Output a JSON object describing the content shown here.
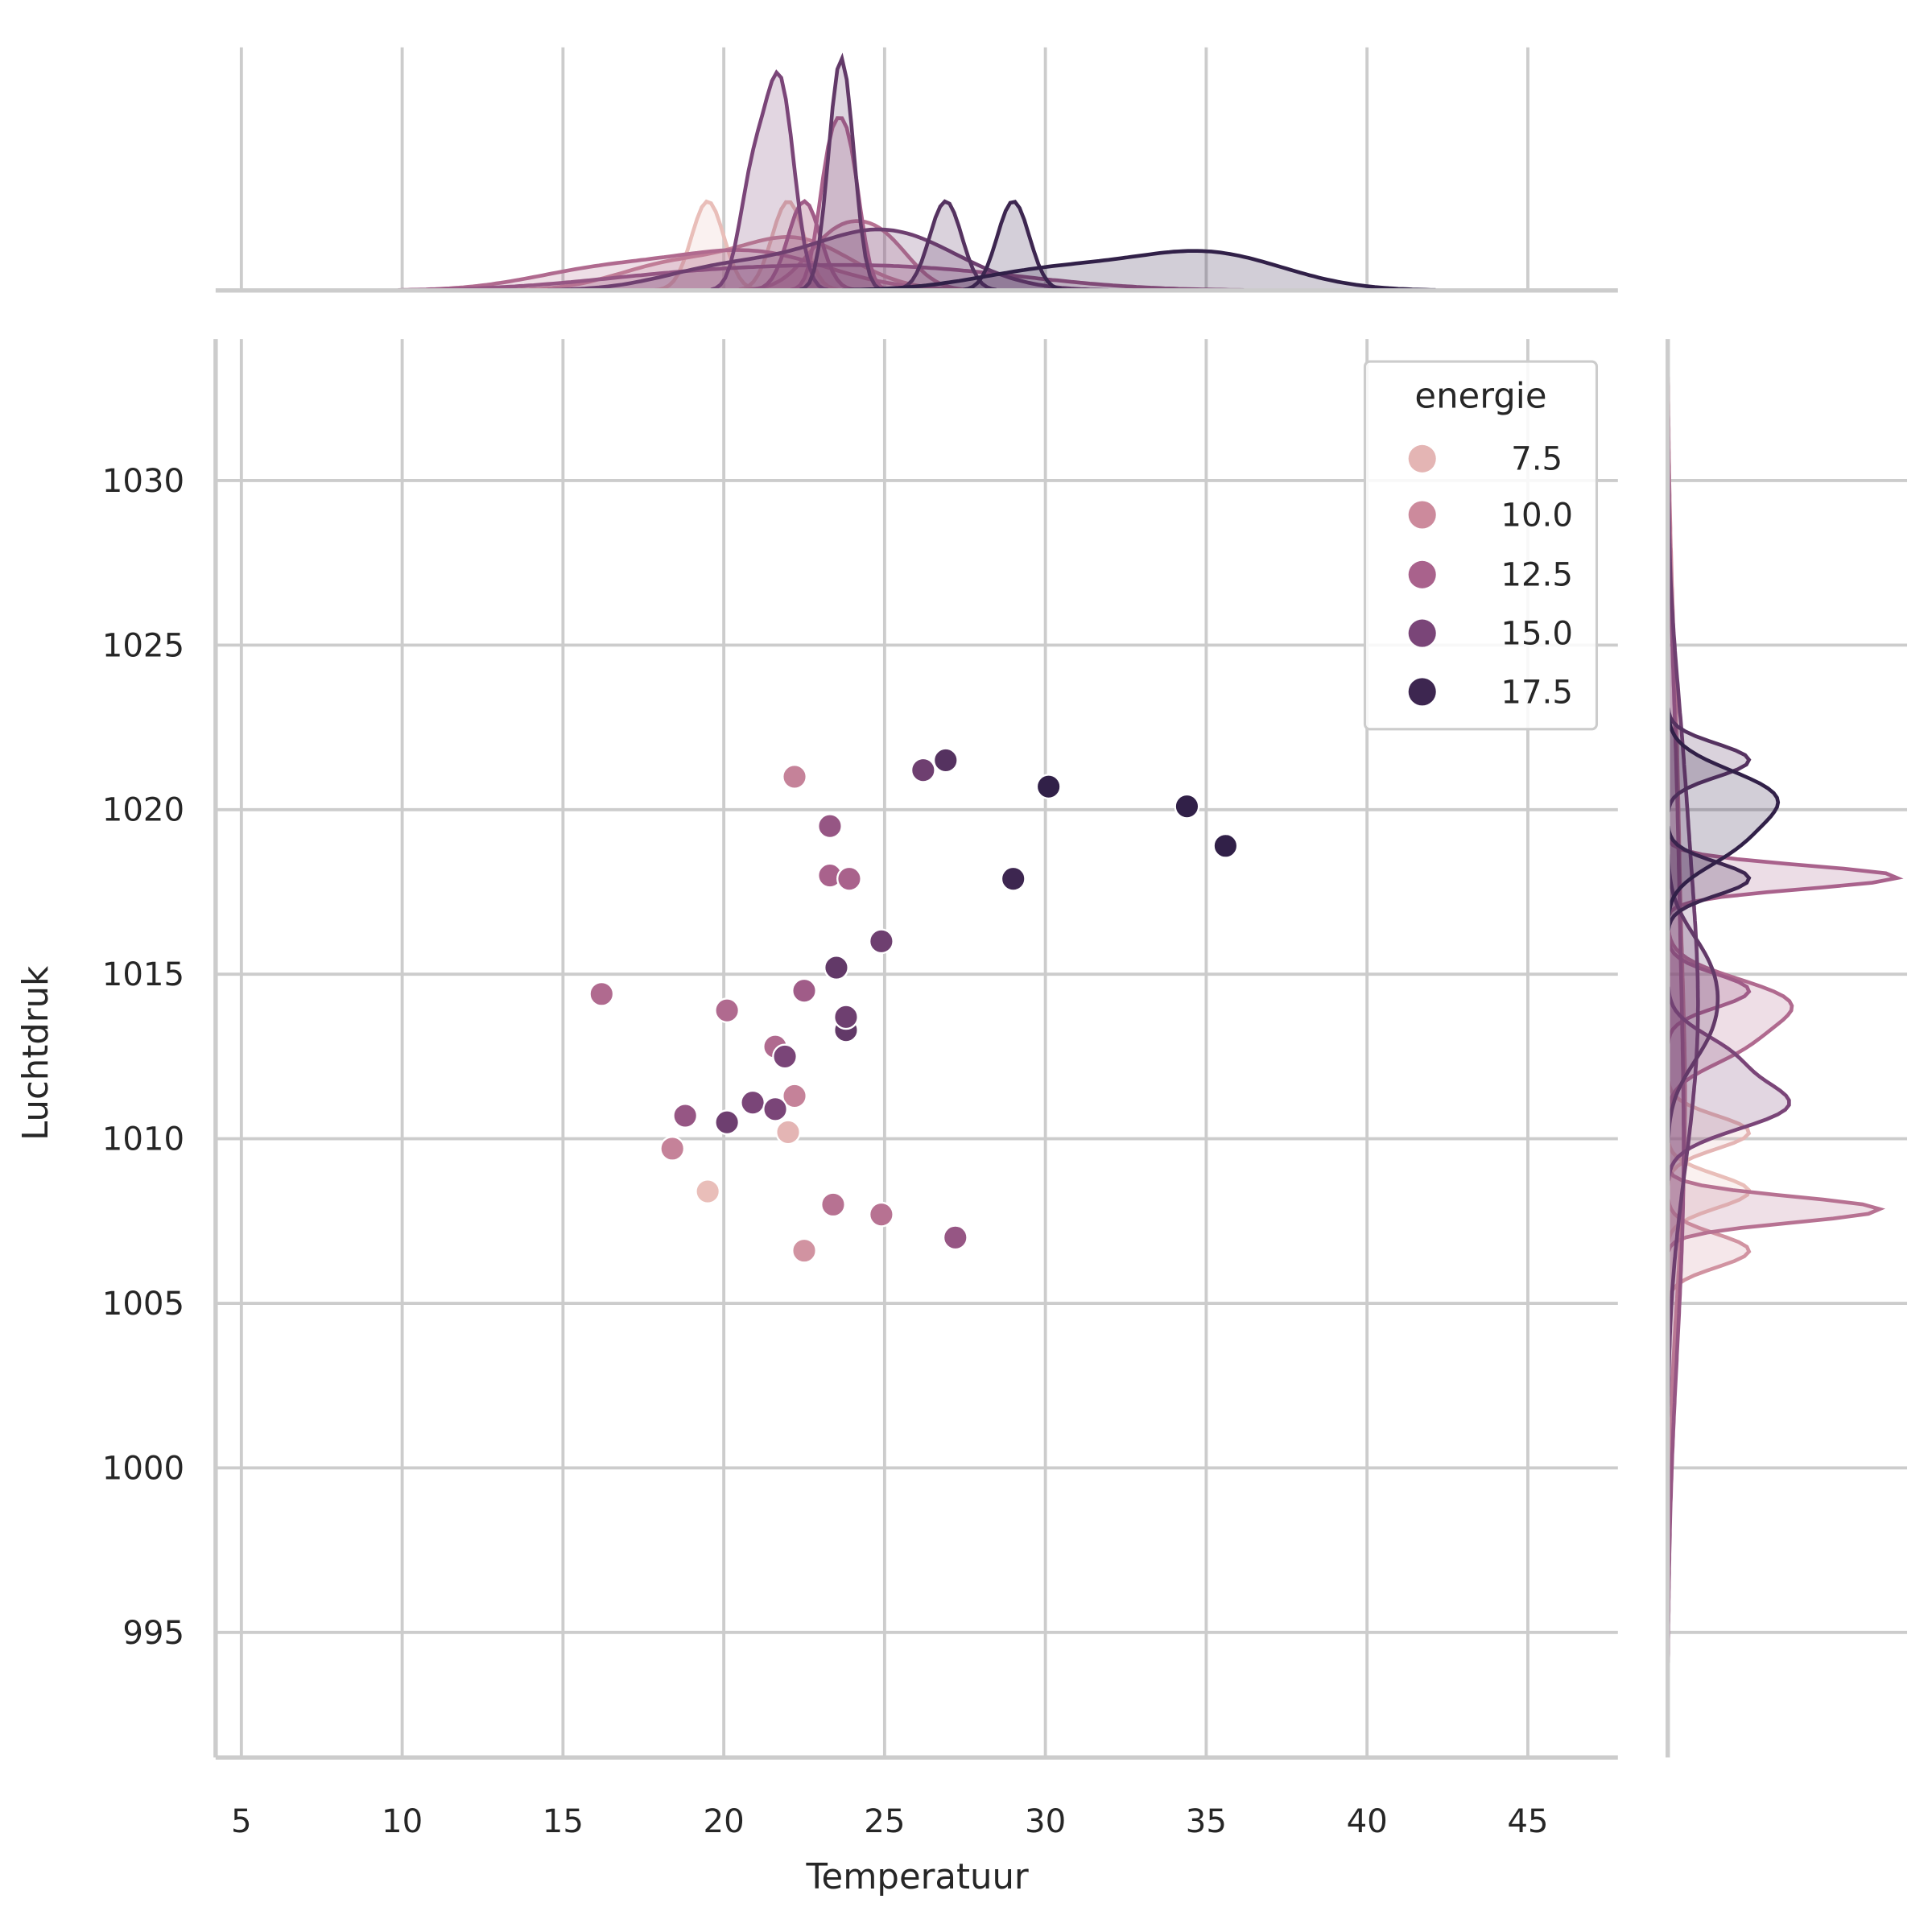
{
  "chart_data": {
    "type": "scatter",
    "kind": "jointplot",
    "xlabel": "Temperatuur",
    "ylabel": "Luchtdruk",
    "xlim": [
      4.2,
      47.8
    ],
    "ylim": [
      991.2,
      1034.3
    ],
    "xticks": [
      5,
      10,
      15,
      20,
      25,
      30,
      35,
      40,
      45
    ],
    "yticks": [
      995,
      1000,
      1005,
      1010,
      1015,
      1020,
      1025,
      1030
    ],
    "grid": true,
    "legend": {
      "title": "energie",
      "placement": "top-right",
      "entries": [
        {
          "label": "7.5",
          "value": 7.5,
          "color": "#e4b5b4"
        },
        {
          "label": "10.0",
          "value": 10.0,
          "color": "#cc8a9c"
        },
        {
          "label": "12.5",
          "value": 12.5,
          "color": "#a9628c"
        },
        {
          "label": "15.0",
          "value": 15.0,
          "color": "#7a4578"
        },
        {
          "label": "17.5",
          "value": 17.5,
          "color": "#3d2650"
        }
      ]
    },
    "hue_range": [
      6.5,
      18.5
    ],
    "points": [
      {
        "x": 22.2,
        "y": 1021.0,
        "energie": 10.5
      },
      {
        "x": 23.3,
        "y": 1019.5,
        "energie": 13.5
      },
      {
        "x": 23.3,
        "y": 1018.0,
        "energie": 12.5
      },
      {
        "x": 23.9,
        "y": 1017.9,
        "energie": 12.5
      },
      {
        "x": 26.2,
        "y": 1021.2,
        "energie": 15.5
      },
      {
        "x": 26.9,
        "y": 1021.5,
        "energie": 16.5
      },
      {
        "x": 30.1,
        "y": 1020.7,
        "energie": 18.0
      },
      {
        "x": 34.4,
        "y": 1020.1,
        "energie": 18.0
      },
      {
        "x": 35.6,
        "y": 1018.9,
        "energie": 18.0
      },
      {
        "x": 29.0,
        "y": 1017.9,
        "energie": 17.5
      },
      {
        "x": 24.9,
        "y": 1016.0,
        "energie": 15.5
      },
      {
        "x": 23.5,
        "y": 1015.2,
        "energie": 16.0
      },
      {
        "x": 16.2,
        "y": 1014.4,
        "energie": 12.0
      },
      {
        "x": 20.1,
        "y": 1013.9,
        "energie": 12.0
      },
      {
        "x": 22.5,
        "y": 1014.5,
        "energie": 13.0
      },
      {
        "x": 23.8,
        "y": 1013.3,
        "energie": 16.0
      },
      {
        "x": 23.8,
        "y": 1013.7,
        "energie": 15.5
      },
      {
        "x": 21.6,
        "y": 1012.8,
        "energie": 12.0
      },
      {
        "x": 21.9,
        "y": 1012.5,
        "energie": 15.0
      },
      {
        "x": 22.2,
        "y": 1011.3,
        "energie": 10.5
      },
      {
        "x": 20.9,
        "y": 1011.1,
        "energie": 15.0
      },
      {
        "x": 21.6,
        "y": 1010.9,
        "energie": 15.0
      },
      {
        "x": 18.8,
        "y": 1010.7,
        "energie": 13.5
      },
      {
        "x": 20.1,
        "y": 1010.5,
        "energie": 15.5
      },
      {
        "x": 22.0,
        "y": 1010.2,
        "energie": 7.5
      },
      {
        "x": 18.4,
        "y": 1009.7,
        "energie": 10.5
      },
      {
        "x": 19.5,
        "y": 1008.4,
        "energie": 7.0
      },
      {
        "x": 23.4,
        "y": 1008.0,
        "energie": 11.5
      },
      {
        "x": 24.9,
        "y": 1007.7,
        "energie": 11.5
      },
      {
        "x": 27.2,
        "y": 1007.0,
        "energie": 13.5
      },
      {
        "x": 22.5,
        "y": 1006.6,
        "energie": 9.5
      }
    ]
  }
}
